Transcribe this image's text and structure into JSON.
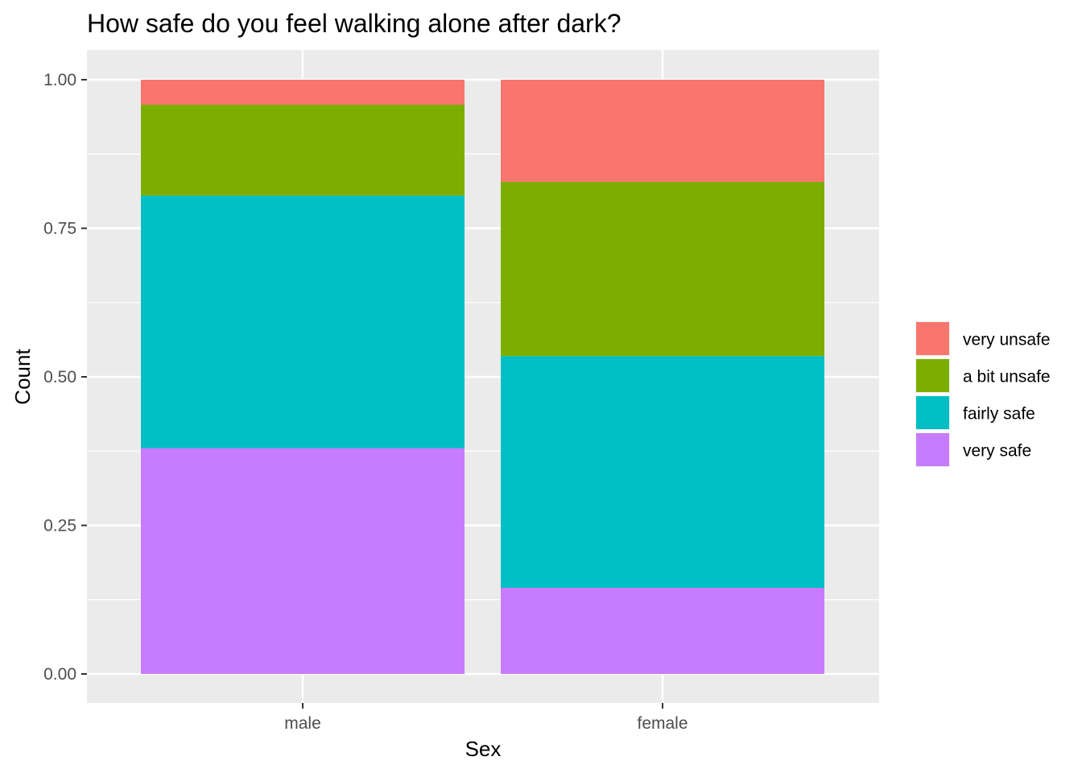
{
  "chart_data": {
    "type": "bar",
    "stacked": true,
    "title": "How safe do you feel walking alone after dark?",
    "xlabel": "Sex",
    "ylabel": "Count",
    "categories": [
      "male",
      "female"
    ],
    "ylim": [
      0,
      1
    ],
    "yticks": [
      "0.00",
      "0.25",
      "0.50",
      "0.75",
      "1.00"
    ],
    "series": [
      {
        "name": "very safe",
        "color": "#C77CFF",
        "values": [
          0.38,
          0.145
        ]
      },
      {
        "name": "fairly safe",
        "color": "#00BFC4",
        "values": [
          0.425,
          0.39
        ]
      },
      {
        "name": "a bit unsafe",
        "color": "#7CAE00",
        "values": [
          0.153,
          0.293
        ]
      },
      {
        "name": "very unsafe",
        "color": "#F8766D",
        "values": [
          0.042,
          0.172
        ]
      }
    ],
    "legend_order": [
      "very unsafe",
      "a bit unsafe",
      "fairly safe",
      "very safe"
    ],
    "grid": true,
    "legend_position": "right"
  }
}
